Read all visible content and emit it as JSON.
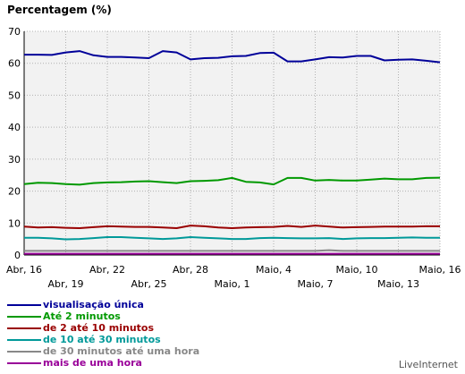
{
  "chart_data": {
    "type": "line",
    "title": "Percentagem (%)",
    "xlabel": "",
    "ylabel": "",
    "ylim": [
      0,
      70
    ],
    "yticks": [
      0,
      10,
      20,
      30,
      40,
      50,
      60,
      70
    ],
    "grid": true,
    "legend_position": "bottom-left",
    "x_labels_row1": [
      {
        "i": 0,
        "label": "Abr, 16"
      },
      {
        "i": 6,
        "label": "Abr, 22"
      },
      {
        "i": 12,
        "label": "Abr, 28"
      },
      {
        "i": 18,
        "label": "Maio, 4"
      },
      {
        "i": 24,
        "label": "Maio, 10"
      },
      {
        "i": 30,
        "label": "Maio, 16"
      }
    ],
    "x_labels_row2": [
      {
        "i": 3,
        "label": "Abr, 19"
      },
      {
        "i": 9,
        "label": "Abr, 25"
      },
      {
        "i": 15,
        "label": "Maio, 1"
      },
      {
        "i": 21,
        "label": "Maio, 7"
      },
      {
        "i": 27,
        "label": "Maio, 13"
      }
    ],
    "x": [
      "Abr 16",
      "Abr 17",
      "Abr 18",
      "Abr 19",
      "Abr 20",
      "Abr 21",
      "Abr 22",
      "Abr 23",
      "Abr 24",
      "Abr 25",
      "Abr 26",
      "Abr 27",
      "Abr 28",
      "Abr 29",
      "Abr 30",
      "Maio 1",
      "Maio 2",
      "Maio 3",
      "Maio 4",
      "Maio 5",
      "Maio 6",
      "Maio 7",
      "Maio 8",
      "Maio 9",
      "Maio 10",
      "Maio 11",
      "Maio 12",
      "Maio 13",
      "Maio 14",
      "Maio 15",
      "Maio 16"
    ],
    "series": [
      {
        "name": "visualisação única",
        "color": "#000099",
        "values": [
          62.7,
          62.7,
          62.6,
          63.4,
          63.8,
          62.5,
          62.0,
          62.0,
          61.8,
          61.6,
          63.8,
          63.4,
          61.2,
          61.6,
          61.7,
          62.2,
          62.3,
          63.2,
          63.3,
          60.6,
          60.6,
          61.2,
          61.9,
          61.8,
          62.3,
          62.3,
          60.9,
          61.1,
          61.2,
          60.8,
          60.3
        ]
      },
      {
        "name": "Até 2 minutos",
        "color": "#009900",
        "values": [
          22.2,
          22.6,
          22.5,
          22.2,
          22.0,
          22.5,
          22.7,
          22.8,
          23.0,
          23.1,
          22.8,
          22.5,
          23.1,
          23.2,
          23.4,
          24.1,
          22.9,
          22.7,
          22.1,
          24.1,
          24.1,
          23.3,
          23.5,
          23.3,
          23.3,
          23.6,
          23.9,
          23.7,
          23.7,
          24.1,
          24.2
        ]
      },
      {
        "name": "de 2 até 10 minutos",
        "color": "#990000",
        "values": [
          8.9,
          8.6,
          8.7,
          8.5,
          8.4,
          8.7,
          9.0,
          8.9,
          8.8,
          8.8,
          8.6,
          8.4,
          9.2,
          9.0,
          8.6,
          8.4,
          8.6,
          8.7,
          8.8,
          9.1,
          8.8,
          9.2,
          8.9,
          8.6,
          8.7,
          8.8,
          8.9,
          8.9,
          8.9,
          9.0,
          9.0
        ]
      },
      {
        "name": "de 10 até 30 minutos",
        "color": "#009999",
        "values": [
          5.4,
          5.4,
          5.2,
          4.9,
          5.0,
          5.3,
          5.6,
          5.6,
          5.4,
          5.2,
          5.0,
          5.2,
          5.6,
          5.4,
          5.2,
          5.0,
          5.0,
          5.3,
          5.4,
          5.3,
          5.2,
          5.2,
          5.3,
          5.0,
          5.2,
          5.3,
          5.3,
          5.4,
          5.5,
          5.4,
          5.4
        ]
      },
      {
        "name": "de 30 minutos até uma hora",
        "color": "#888888",
        "values": [
          1.3,
          1.3,
          1.3,
          1.3,
          1.3,
          1.3,
          1.3,
          1.3,
          1.3,
          1.3,
          1.3,
          1.3,
          1.3,
          1.3,
          1.3,
          1.3,
          1.3,
          1.3,
          1.3,
          1.3,
          1.3,
          1.3,
          1.5,
          1.3,
          1.3,
          1.3,
          1.3,
          1.3,
          1.3,
          1.3,
          1.3
        ]
      },
      {
        "name": "mais de uma hora",
        "color": "#990099",
        "values": [
          0.4,
          0.4,
          0.4,
          0.4,
          0.4,
          0.4,
          0.4,
          0.4,
          0.4,
          0.4,
          0.4,
          0.4,
          0.4,
          0.4,
          0.4,
          0.4,
          0.4,
          0.4,
          0.4,
          0.4,
          0.4,
          0.4,
          0.4,
          0.4,
          0.4,
          0.4,
          0.4,
          0.4,
          0.4,
          0.4,
          0.4
        ]
      }
    ]
  },
  "brand": "LiveInternet"
}
